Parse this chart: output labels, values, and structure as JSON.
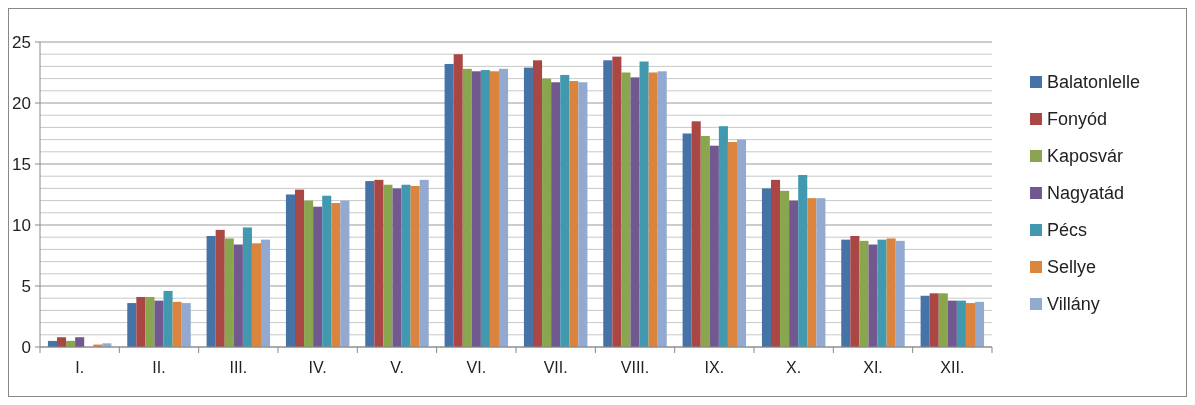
{
  "chart_data": {
    "type": "bar",
    "categories": [
      "I.",
      "II.",
      "III.",
      "IV.",
      "V.",
      "VI.",
      "VII.",
      "VIII.",
      "IX.",
      "X.",
      "XI.",
      "XII."
    ],
    "series": [
      {
        "name": "Balatonlelle",
        "color": "#4572a7",
        "values": [
          0.5,
          3.6,
          9.1,
          12.5,
          13.6,
          23.2,
          22.9,
          23.5,
          17.5,
          13.0,
          8.8,
          4.2
        ]
      },
      {
        "name": "Fonyód",
        "color": "#aa4643",
        "values": [
          0.8,
          4.1,
          9.6,
          12.9,
          13.7,
          24.0,
          23.5,
          23.8,
          18.5,
          13.7,
          9.1,
          4.4
        ]
      },
      {
        "name": "Kaposvár",
        "color": "#89a54e",
        "values": [
          0.5,
          4.1,
          8.9,
          12.0,
          13.3,
          22.8,
          22.0,
          22.5,
          17.3,
          12.8,
          8.7,
          4.4
        ]
      },
      {
        "name": "Nagyatád",
        "color": "#71588f",
        "values": [
          0.8,
          3.8,
          8.4,
          11.5,
          13.0,
          22.6,
          21.7,
          22.1,
          16.5,
          12.0,
          8.4,
          3.8
        ]
      },
      {
        "name": "Pécs",
        "color": "#4198af",
        "values": [
          null,
          4.6,
          9.8,
          12.4,
          13.3,
          22.7,
          22.3,
          23.4,
          18.1,
          14.1,
          8.8,
          3.8
        ]
      },
      {
        "name": "Sellye",
        "color": "#db843d",
        "values": [
          0.2,
          3.7,
          8.5,
          11.8,
          13.2,
          22.6,
          21.8,
          22.5,
          16.8,
          12.2,
          8.9,
          3.6
        ]
      },
      {
        "name": "Villány",
        "color": "#93a9cf",
        "values": [
          0.3,
          3.6,
          8.8,
          12.0,
          13.7,
          22.8,
          21.7,
          22.6,
          17.0,
          12.2,
          8.7,
          3.7
        ]
      }
    ],
    "ylim": [
      0,
      25
    ],
    "yticks": [
      0,
      {
        "value": 1,
        "label": null
      },
      {
        "value": 2,
        "label": null
      },
      {
        "value": 3,
        "label": null
      },
      {
        "value": 4,
        "label": null
      },
      5,
      {
        "value": 6,
        "label": null
      },
      {
        "value": 7,
        "label": null
      },
      {
        "value": 8,
        "label": null
      },
      {
        "value": 9,
        "label": null
      },
      10,
      {
        "value": 11,
        "label": null
      },
      {
        "value": 12,
        "label": null
      },
      {
        "value": 13,
        "label": null
      },
      {
        "value": 14,
        "label": null
      },
      15,
      {
        "value": 16,
        "label": null
      },
      {
        "value": 17,
        "label": null
      },
      {
        "value": 18,
        "label": null
      },
      {
        "value": 19,
        "label": null
      },
      20,
      {
        "value": 21,
        "label": null
      },
      {
        "value": 22,
        "label": null
      },
      {
        "value": 23,
        "label": null
      },
      {
        "value": 24,
        "label": null
      },
      25
    ],
    "grid": "y",
    "legend": "right"
  }
}
